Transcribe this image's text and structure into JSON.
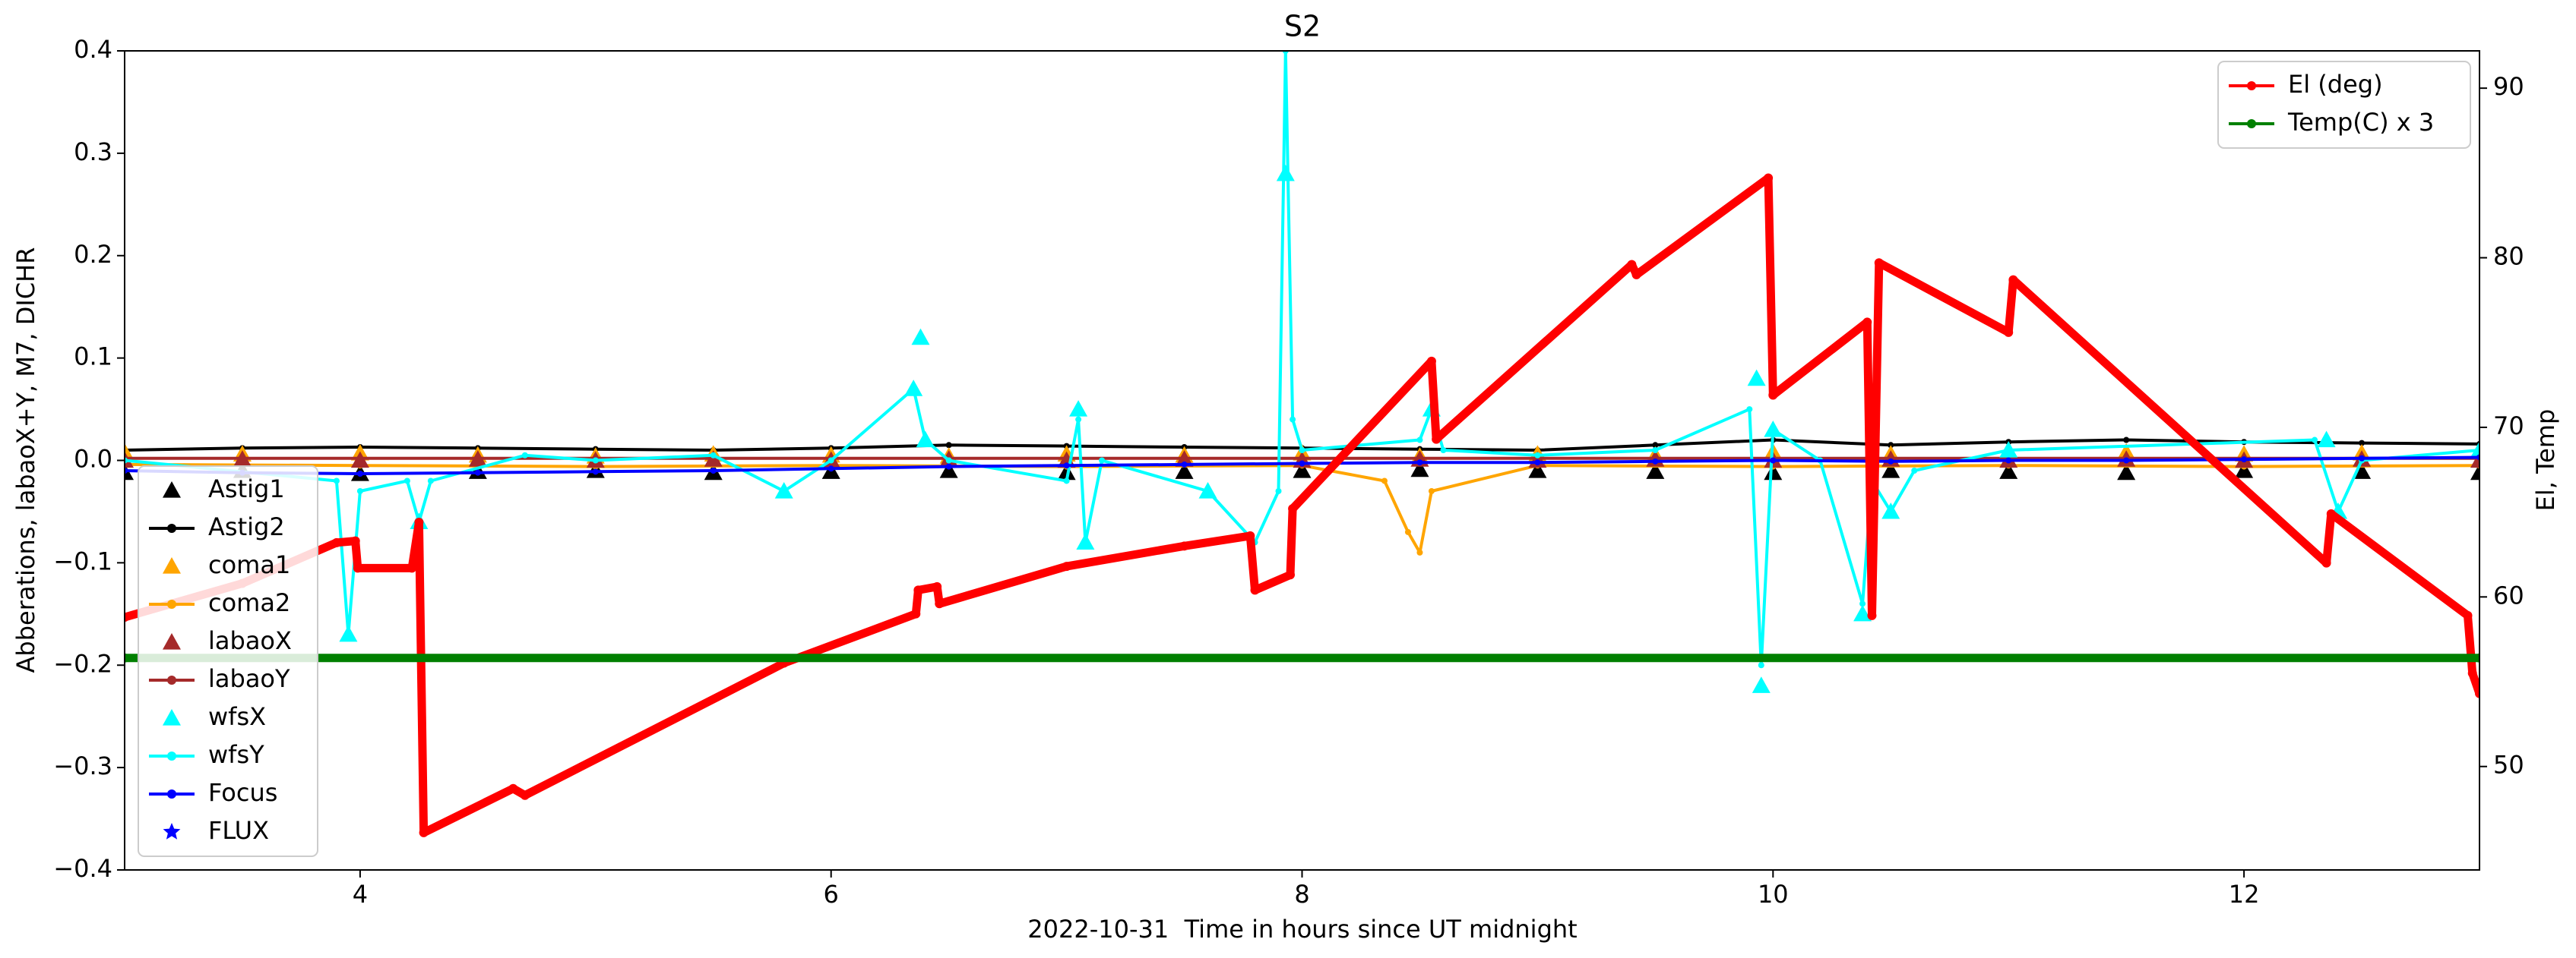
{
  "chart_data": {
    "type": "line",
    "title": "S2",
    "xlabel": "2022-10-31  Time in hours since UT midnight",
    "ylabel": "Abberations, labaoX+Y, M7, DICHR",
    "y2label": "El, Temp",
    "xlim": [
      3,
      13
    ],
    "xticks": [
      4,
      6,
      8,
      10,
      12
    ],
    "ylim": [
      -0.4,
      0.4
    ],
    "yticks": [
      {
        "value": -0.4,
        "label": "−0.4"
      },
      {
        "value": -0.3,
        "label": "−0.3"
      },
      {
        "value": -0.2,
        "label": "−0.2"
      },
      {
        "value": -0.1,
        "label": "−0.1"
      },
      {
        "value": 0,
        "label": "0.0"
      },
      0.1,
      0.2,
      0.3,
      0.4
    ],
    "y2lim": [
      43.9,
      92.2
    ],
    "y2ticks": [
      50,
      60,
      70,
      80,
      90
    ],
    "legend": "lower left",
    "legend2": "upper right",
    "x": [
      3,
      3.5,
      4,
      4.5,
      5,
      5.5,
      6,
      6.5,
      7,
      7.5,
      8,
      8.5,
      9,
      9.5,
      10,
      10.5,
      11,
      11.5,
      12,
      12.5,
      13
    ],
    "series": [
      {
        "name": "Astig1",
        "color": "#000000",
        "marker": "^",
        "values": [
          -0.012,
          -0.01,
          -0.013,
          -0.011,
          -0.01,
          -0.012,
          -0.011,
          -0.01,
          -0.012,
          -0.011,
          -0.01,
          -0.009,
          -0.01,
          -0.011,
          -0.012,
          -0.01,
          -0.011,
          -0.012,
          -0.01,
          -0.011,
          -0.012
        ]
      },
      {
        "name": "Astig2",
        "color": "#000000",
        "marker": ".",
        "values": [
          0.01,
          0.012,
          0.013,
          0.012,
          0.011,
          0.01,
          0.012,
          0.015,
          0.014,
          0.013,
          0.012,
          0.011,
          0.01,
          0.015,
          0.02,
          0.015,
          0.018,
          0.02,
          0.018,
          0.017,
          0.016
        ]
      },
      {
        "name": "coma1",
        "color": "#ffa500",
        "marker": "^",
        "values": [
          0.008,
          0.006,
          0.007,
          0.005,
          0.004,
          0.006,
          0.005,
          0.004,
          0.006,
          0.005,
          0.007,
          0.004,
          0.006,
          0.005,
          0.008,
          0.006,
          0.007,
          0.008,
          0.006,
          0.007,
          0.008
        ]
      },
      {
        "name": "coma2",
        "color": "#ffa500",
        "marker": ".",
        "x": [
          3,
          4,
          5,
          6,
          7,
          8,
          8.35,
          8.45,
          8.5,
          8.55,
          9,
          10,
          11,
          12,
          13
        ],
        "values": [
          -0.004,
          -0.005,
          -0.006,
          -0.005,
          -0.006,
          -0.005,
          -0.02,
          -0.07,
          -0.09,
          -0.03,
          -0.005,
          -0.006,
          -0.005,
          -0.006,
          -0.005
        ]
      },
      {
        "name": "labaoX",
        "color": "#a52a2a",
        "marker": "^",
        "values": [
          0.0,
          0.001,
          0.0,
          0.001,
          0.0,
          0.001,
          0.0,
          0.001,
          0.0,
          0.001,
          0.0,
          0.001,
          0.0,
          0.001,
          0.0,
          0.001,
          0.0,
          0.001,
          0.0,
          0.001,
          0.0
        ]
      },
      {
        "name": "labaoY",
        "color": "#a52a2a",
        "marker": ".",
        "values": [
          0.002,
          0.002,
          0.002,
          0.002,
          0.002,
          0.002,
          0.002,
          0.002,
          0.002,
          0.002,
          0.002,
          0.002,
          0.002,
          0.002,
          0.002,
          0.002,
          0.002,
          0.002,
          0.002,
          0.002,
          0.002
        ]
      },
      {
        "name": "wfsX",
        "color": "#00ffff",
        "marker": "^",
        "x": [
          3.95,
          4.25,
          5.8,
          6.35,
          6.38,
          6.4,
          7.05,
          7.08,
          7.6,
          7.93,
          8.55,
          9.93,
          9.95,
          10.0,
          10.38,
          10.5,
          11.0,
          12.35,
          12.4,
          13
        ],
        "values": [
          -0.17,
          -0.06,
          -0.03,
          0.07,
          0.12,
          0.02,
          0.05,
          -0.08,
          -0.03,
          0.28,
          0.05,
          0.08,
          -0.22,
          0.03,
          -0.15,
          -0.05,
          0.01,
          0.02,
          -0.05,
          0.01
        ]
      },
      {
        "name": "wfsY",
        "color": "#00ffff",
        "marker": ".",
        "x": [
          3,
          3.9,
          3.95,
          4.0,
          4.2,
          4.25,
          4.3,
          4.7,
          5.0,
          5.5,
          5.8,
          6.0,
          6.35,
          6.4,
          6.5,
          7.0,
          7.05,
          7.08,
          7.15,
          7.6,
          7.8,
          7.9,
          7.93,
          7.96,
          8.0,
          8.5,
          8.55,
          8.6,
          9.0,
          9.5,
          9.9,
          9.95,
          10.0,
          10.2,
          10.38,
          10.42,
          10.5,
          10.6,
          11.0,
          12.3,
          12.4,
          12.5,
          13
        ],
        "values": [
          0.0,
          -0.02,
          -0.17,
          -0.03,
          -0.02,
          -0.06,
          -0.02,
          0.005,
          0.0,
          0.005,
          -0.03,
          0.0,
          0.07,
          0.02,
          0.0,
          -0.02,
          0.04,
          -0.08,
          0.0,
          -0.03,
          -0.08,
          -0.03,
          0.4,
          0.04,
          0.01,
          0.02,
          0.05,
          0.01,
          0.005,
          0.01,
          0.05,
          -0.2,
          0.03,
          0.0,
          -0.14,
          -0.02,
          -0.05,
          -0.01,
          0.01,
          0.02,
          -0.05,
          0.0,
          0.01
        ]
      },
      {
        "name": "Focus",
        "color": "#0000ff",
        "marker": ".",
        "values": [
          -0.01,
          -0.012,
          -0.013,
          -0.012,
          -0.011,
          -0.01,
          -0.008,
          -0.006,
          -0.005,
          -0.004,
          -0.003,
          -0.002,
          -0.002,
          -0.001,
          0.0,
          -0.001,
          0.0,
          0.0,
          0.001,
          0.002,
          0.003
        ]
      },
      {
        "name": "FLUX",
        "color": "#0000ff",
        "marker": "*",
        "values": [
          null,
          null,
          null,
          null,
          null,
          null,
          null,
          null,
          null,
          null,
          null,
          null,
          null,
          null,
          null,
          null,
          null,
          null,
          null,
          null,
          null
        ]
      },
      {
        "name": "El (deg)",
        "color": "#ff0000",
        "marker": ".",
        "axis": "y2",
        "x": [
          3.0,
          3.5,
          3.9,
          3.98,
          3.99,
          4.22,
          4.25,
          4.27,
          4.65,
          4.7,
          5.8,
          6.36,
          6.37,
          6.45,
          6.46,
          7.0,
          7.5,
          7.78,
          7.8,
          7.95,
          7.96,
          8.55,
          8.57,
          9.4,
          9.42,
          9.98,
          10.0,
          10.4,
          10.42,
          10.45,
          11.0,
          11.02,
          12.35,
          12.37,
          12.95,
          12.97,
          13.0
        ],
        "values": [
          58.8,
          60.8,
          63.2,
          63.3,
          61.7,
          61.7,
          64.4,
          46.1,
          48.7,
          48.3,
          56.1,
          59.0,
          60.4,
          60.6,
          59.6,
          61.8,
          63.0,
          63.6,
          60.4,
          61.3,
          65.2,
          73.9,
          69.3,
          79.6,
          79.0,
          84.7,
          71.9,
          76.2,
          58.9,
          79.7,
          75.6,
          78.7,
          62.0,
          64.9,
          58.9,
          55.5,
          54.3
        ]
      },
      {
        "name": "Temp(C) x 3",
        "color": "#008000",
        "marker": ".",
        "axis": "y2",
        "x": [
          3,
          13
        ],
        "values": [
          56.4,
          56.4
        ]
      }
    ]
  }
}
